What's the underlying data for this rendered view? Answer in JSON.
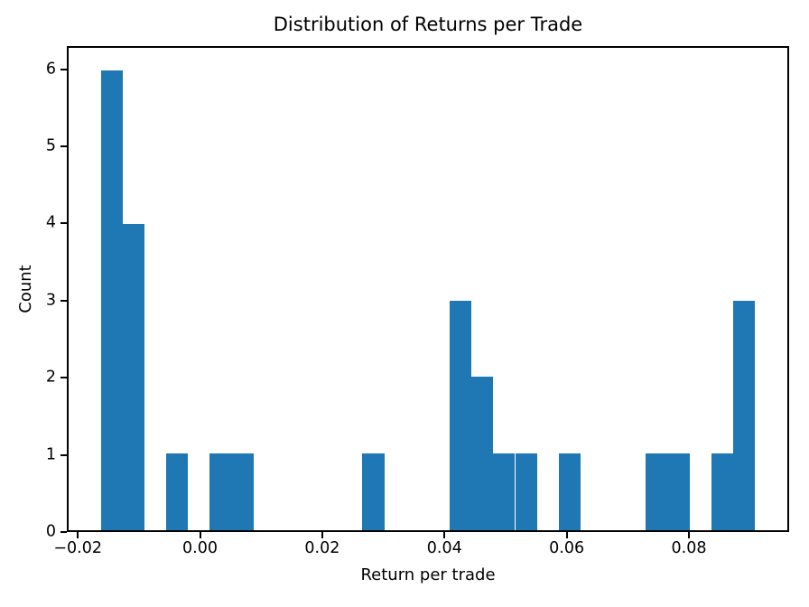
{
  "chart_data": {
    "type": "histogram",
    "title": "Distribution of Returns per Trade",
    "xlabel": "Return per trade",
    "ylabel": "Count",
    "bar_color": "#1f77b4",
    "grid": false,
    "legend_position": "none",
    "xlim": [
      -0.0218,
      0.0964
    ],
    "ylim": [
      0,
      6.3
    ],
    "bin_edges": [
      -0.0165,
      -0.01291,
      -0.00933,
      -0.00574,
      -0.00216,
      0.00143,
      0.00502,
      0.0086,
      0.01219,
      0.01577,
      0.01936,
      0.02295,
      0.02653,
      0.03012,
      0.0337,
      0.03729,
      0.04088,
      0.04446,
      0.04805,
      0.05163,
      0.05522,
      0.05881,
      0.06239,
      0.06598,
      0.06956,
      0.07315,
      0.07674,
      0.08032,
      0.08391,
      0.08749,
      0.09108
    ],
    "counts": [
      6,
      4,
      0,
      1,
      0,
      1,
      1,
      0,
      0,
      0,
      0,
      0,
      1,
      0,
      0,
      0,
      3,
      2,
      1,
      1,
      0,
      1,
      0,
      0,
      0,
      1,
      1,
      0,
      1,
      3
    ],
    "xticks": {
      "values": [
        -0.02,
        0.0,
        0.02,
        0.04,
        0.06,
        0.08
      ],
      "labels": [
        "−0.02",
        "0.00",
        "0.02",
        "0.04",
        "0.06",
        "0.08"
      ]
    },
    "yticks": {
      "values": [
        0,
        1,
        2,
        3,
        4,
        5,
        6
      ],
      "labels": [
        "0",
        "1",
        "2",
        "3",
        "4",
        "5",
        "6"
      ]
    }
  }
}
